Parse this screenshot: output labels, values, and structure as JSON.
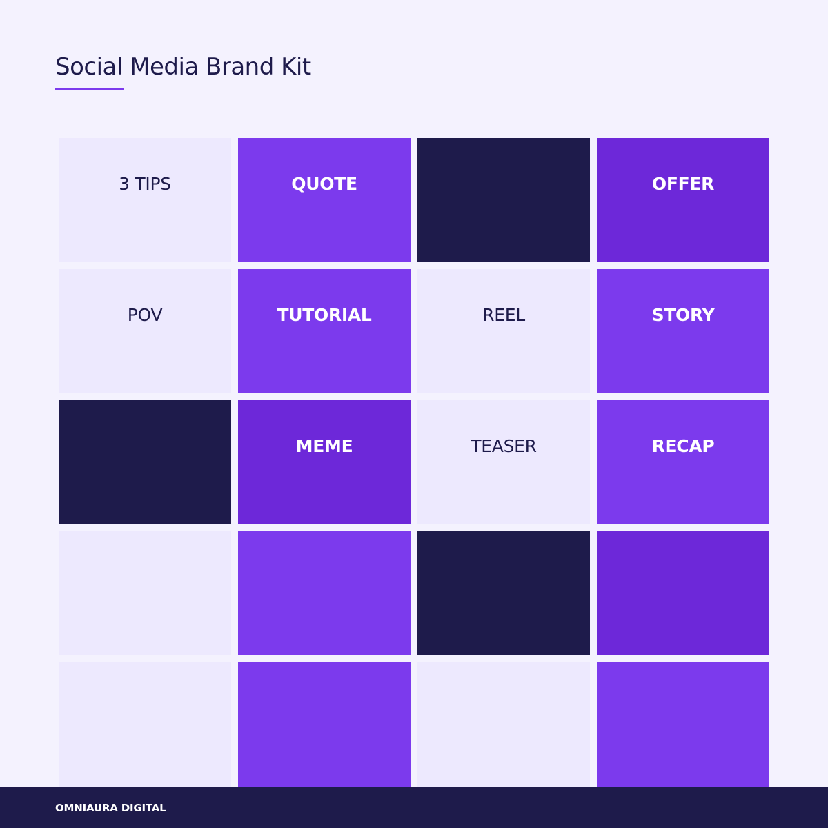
{
  "header": {
    "title": "Social Media Brand Kit"
  },
  "colors": {
    "background": "#f4f2fe",
    "light_tile": "#ede9fe",
    "violet_tile": "#7c3aed",
    "deep_violet_tile": "#6d28d9",
    "navy_tile": "#1e1b4b",
    "accent": "#7c3aed"
  },
  "grid": {
    "tiles": [
      {
        "label": "3 TIPS",
        "style": "light"
      },
      {
        "label": "QUOTE",
        "style": "violet"
      },
      {
        "label": "",
        "style": "navy"
      },
      {
        "label": "OFFER",
        "style": "deep"
      },
      {
        "label": "POV",
        "style": "light"
      },
      {
        "label": "TUTORIAL",
        "style": "violet"
      },
      {
        "label": "REEL",
        "style": "light"
      },
      {
        "label": "STORY",
        "style": "violet"
      },
      {
        "label": "",
        "style": "navy"
      },
      {
        "label": "MEME",
        "style": "deep"
      },
      {
        "label": "TEASER",
        "style": "light"
      },
      {
        "label": "RECAP",
        "style": "violet"
      },
      {
        "label": "",
        "style": "light"
      },
      {
        "label": "",
        "style": "violet"
      },
      {
        "label": "",
        "style": "navy"
      },
      {
        "label": "",
        "style": "deep"
      },
      {
        "label": "",
        "style": "light"
      },
      {
        "label": "",
        "style": "violet"
      },
      {
        "label": "",
        "style": "light"
      },
      {
        "label": "",
        "style": "violet"
      }
    ]
  },
  "footer": {
    "brand": "OMNIAURA DIGITAL"
  }
}
